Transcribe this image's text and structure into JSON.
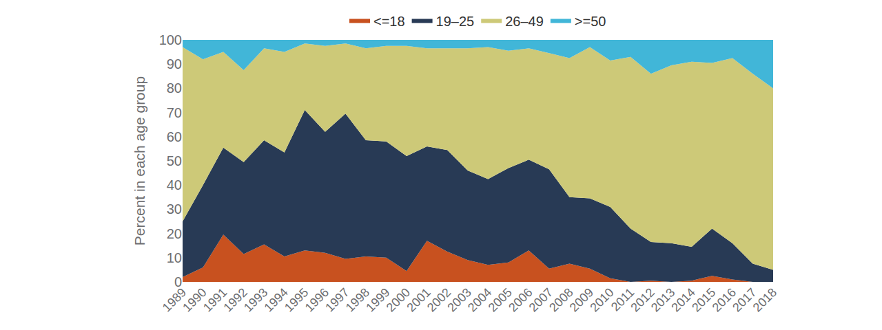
{
  "chart_data": {
    "type": "area",
    "stacked": true,
    "grid": false,
    "legend": "top",
    "y_label": "Percent in each age group",
    "x": [
      1989,
      1990,
      1991,
      1992,
      1993,
      1994,
      1995,
      1996,
      1997,
      1998,
      1999,
      2000,
      2001,
      2002,
      2003,
      2004,
      2005,
      2006,
      2007,
      2008,
      2009,
      2010,
      2011,
      2012,
      2013,
      2014,
      2015,
      2016,
      2017,
      2018
    ],
    "xlim": [
      1989,
      2018
    ],
    "xticks": [
      1989,
      1990,
      1991,
      1992,
      1993,
      1994,
      1995,
      1996,
      1997,
      1998,
      1999,
      2000,
      2001,
      2002,
      2003,
      2004,
      2005,
      2006,
      2007,
      2008,
      2009,
      2010,
      2011,
      2012,
      2013,
      2014,
      2015,
      2016,
      2017,
      2018
    ],
    "ylim": [
      0,
      100
    ],
    "yticks": [
      0,
      10,
      20,
      30,
      40,
      50,
      60,
      70,
      80,
      90,
      100
    ],
    "series": [
      {
        "name": "<=18",
        "color": "#c8511f",
        "values": [
          2,
          6,
          19.5,
          11.5,
          15.5,
          10.5,
          13,
          12,
          9.5,
          10.5,
          10,
          4.5,
          17,
          12.5,
          9,
          7,
          8,
          13,
          5.5,
          7.5,
          5.5,
          1.5,
          0,
          0.5,
          0,
          0.5,
          2.5,
          1,
          0,
          0
        ]
      },
      {
        "name": "19–25",
        "color": "#283a55",
        "values": [
          23,
          34,
          36,
          38,
          43,
          43,
          58,
          50,
          60,
          48,
          48,
          47.5,
          39,
          42,
          37,
          35.5,
          39,
          37.5,
          41,
          27.5,
          29,
          29.5,
          22,
          16,
          16,
          14,
          19.5,
          15,
          7.5,
          5
        ]
      },
      {
        "name": "26–49",
        "color": "#cdc978",
        "values": [
          72,
          52,
          39.5,
          38,
          38,
          41.5,
          27.5,
          35.5,
          29,
          38,
          39.5,
          45.5,
          40.5,
          42,
          50.5,
          54.5,
          48.5,
          46,
          48,
          57.5,
          62.5,
          60.5,
          71,
          69.5,
          73.5,
          76.5,
          68.5,
          76.5,
          78.5,
          75
        ]
      },
      {
        "name": ">=50",
        "color": "#41b6d8",
        "values": [
          3,
          8,
          5,
          12.5,
          3.5,
          5,
          1.5,
          2.5,
          1.5,
          3.5,
          2.5,
          2.5,
          3.5,
          3.5,
          3.5,
          3,
          4.5,
          3.5,
          5.5,
          7.5,
          3,
          8.5,
          7,
          14,
          10.5,
          9,
          9.5,
          7.5,
          14,
          20
        ]
      }
    ]
  }
}
